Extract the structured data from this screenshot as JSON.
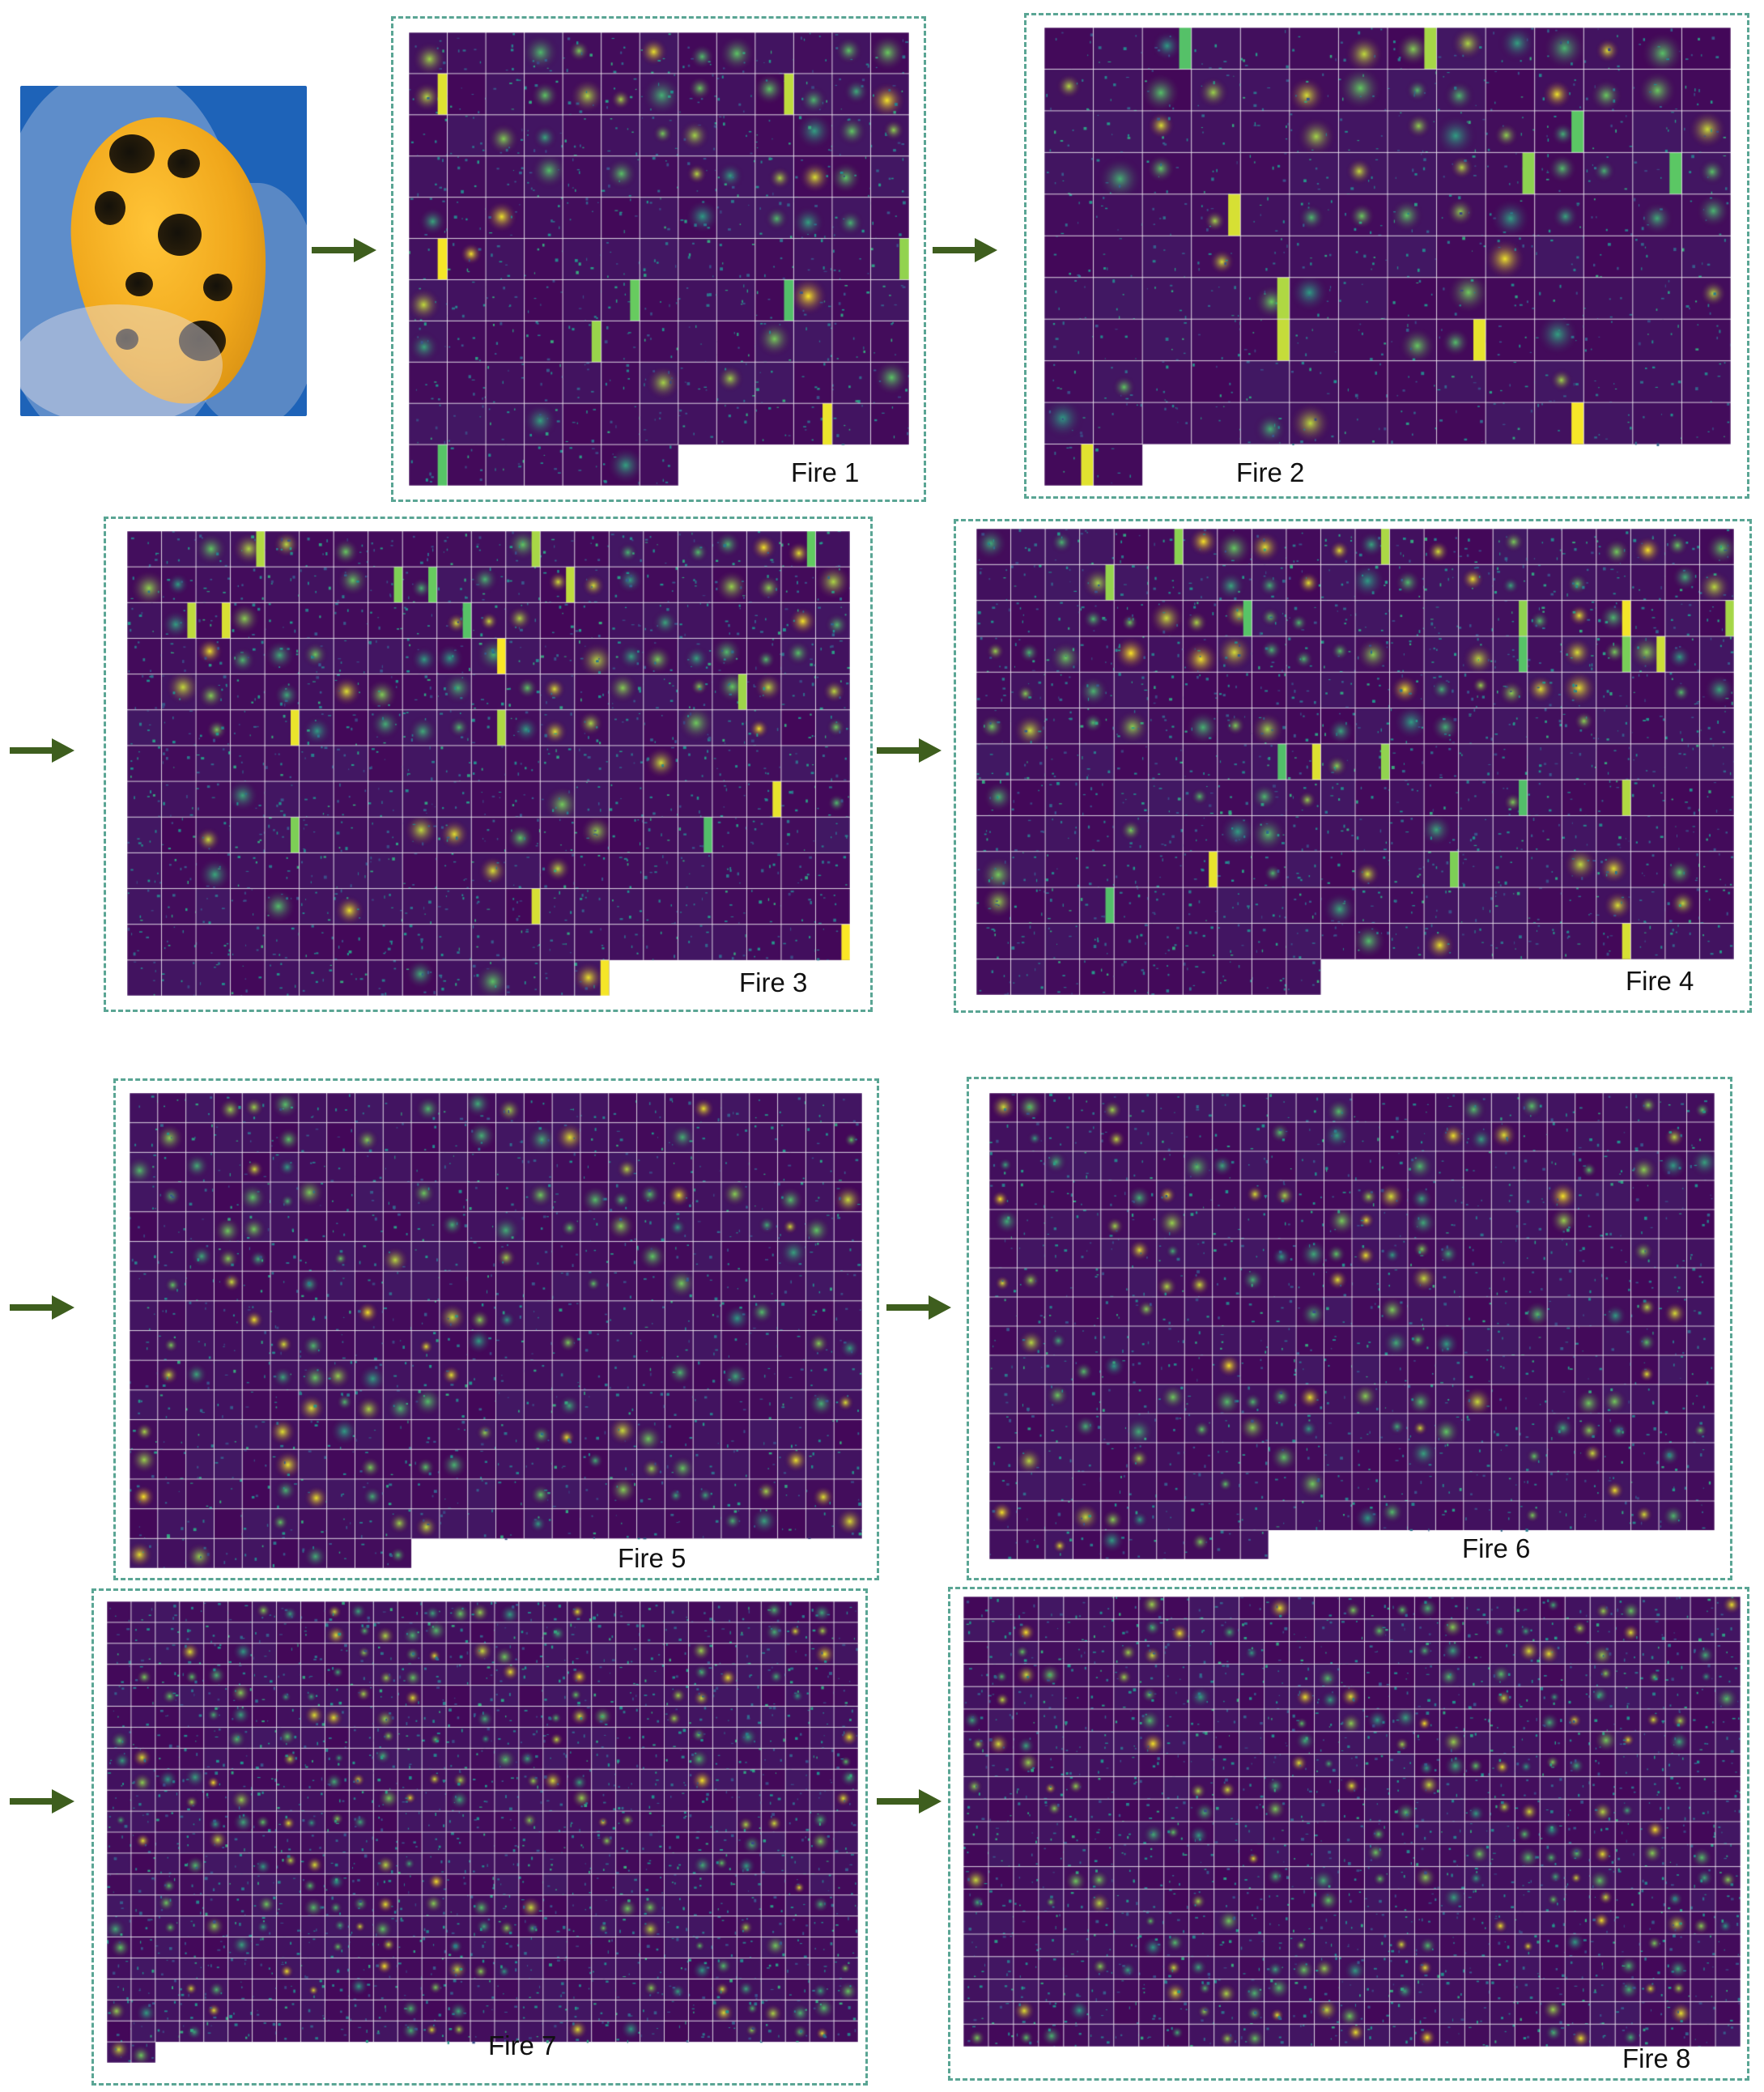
{
  "input_image": {
    "description_icon": "mango-photo"
  },
  "panels": [
    {
      "id": "fire1",
      "label": "Fire 1",
      "rows": 11,
      "cols": 13,
      "count": 137
    },
    {
      "id": "fire2",
      "label": "Fire 2",
      "rows": 11,
      "cols": 14,
      "count": 142
    },
    {
      "id": "fire3",
      "label": "Fire 3",
      "rows": 13,
      "cols": 21,
      "count": 266
    },
    {
      "id": "fire4",
      "label": "Fire 4",
      "rows": 13,
      "cols": 22,
      "count": 274
    },
    {
      "id": "fire5",
      "label": "Fire 5",
      "rows": 16,
      "cols": 26,
      "count": 400
    },
    {
      "id": "fire6",
      "label": "Fire 6",
      "rows": 16,
      "cols": 26,
      "count": 400
    },
    {
      "id": "fire7",
      "label": "Fire 7",
      "rows": 22,
      "cols": 31,
      "count": 653
    },
    {
      "id": "fire8",
      "label": "Fire 8",
      "rows": 20,
      "cols": 31,
      "count": 620
    }
  ],
  "colors": {
    "arrow": "#3e5e1e",
    "panel_border": "#5aa594",
    "viridis_low": "#440154",
    "viridis_mid": "#21908d",
    "viridis_high": "#fde725"
  }
}
